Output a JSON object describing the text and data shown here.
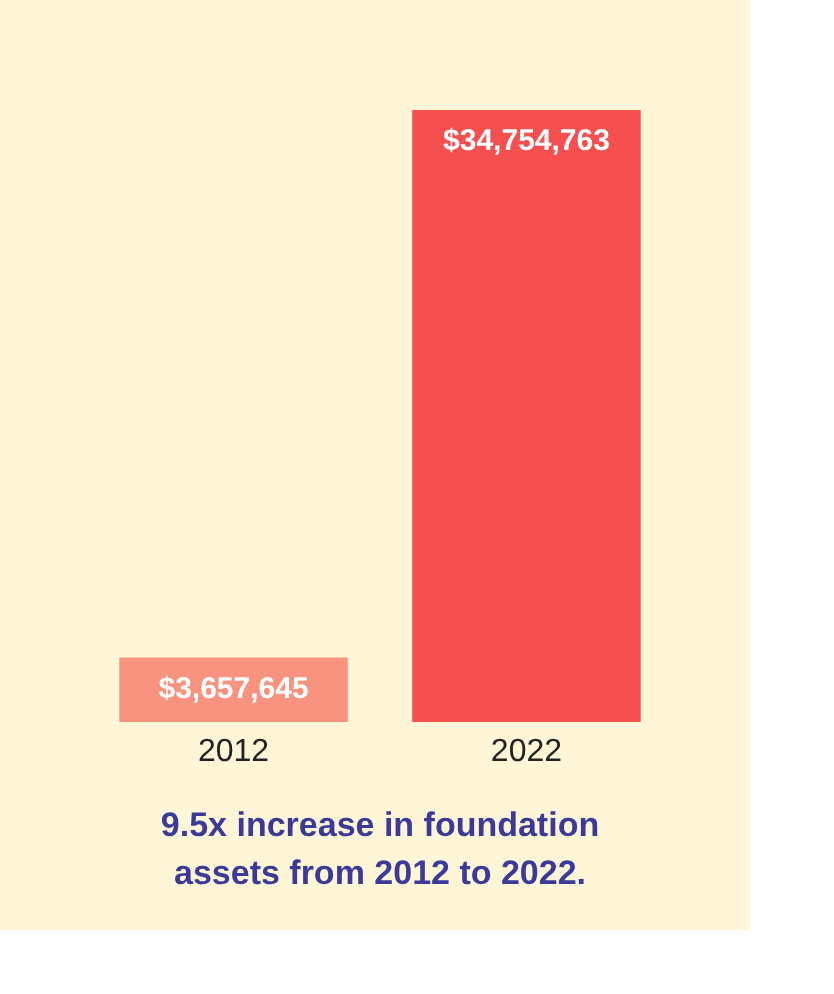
{
  "chart_data": {
    "type": "bar",
    "categories": [
      "2012",
      "2022"
    ],
    "values": [
      3657645,
      34754763
    ],
    "colors": [
      "#f7937f",
      "#f54f4f"
    ],
    "value_labels": [
      "$3,657,645",
      "$34,754,763"
    ],
    "annotations": [
      "9.5x increase in foundation assets from 2012 to 2022."
    ]
  }
}
